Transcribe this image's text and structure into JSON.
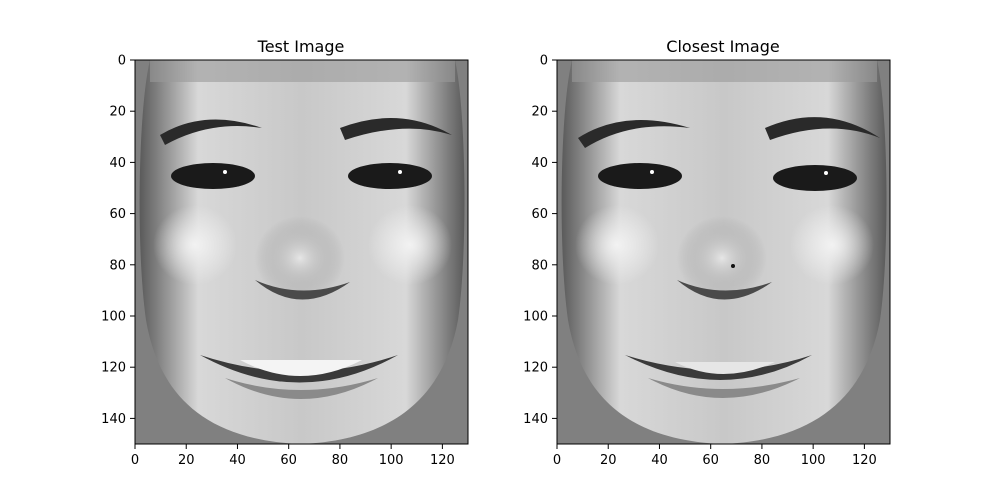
{
  "chart_data": [
    {
      "type": "heatmap",
      "title": "Test Image",
      "colormap": "gray",
      "background_color": "#808080",
      "xlim": [
        0,
        130
      ],
      "ylim": [
        150,
        0
      ],
      "xticks": [
        0,
        20,
        40,
        60,
        80,
        100,
        120
      ],
      "yticks": [
        0,
        20,
        40,
        60,
        80,
        100,
        120,
        140
      ],
      "grid": false
    },
    {
      "type": "heatmap",
      "title": "Closest Image",
      "colormap": "gray",
      "background_color": "#808080",
      "xlim": [
        0,
        130
      ],
      "ylim": [
        150,
        0
      ],
      "xticks": [
        0,
        20,
        40,
        60,
        80,
        100,
        120
      ],
      "yticks": [
        0,
        20,
        40,
        60,
        80,
        100,
        120,
        140
      ],
      "grid": false
    }
  ]
}
